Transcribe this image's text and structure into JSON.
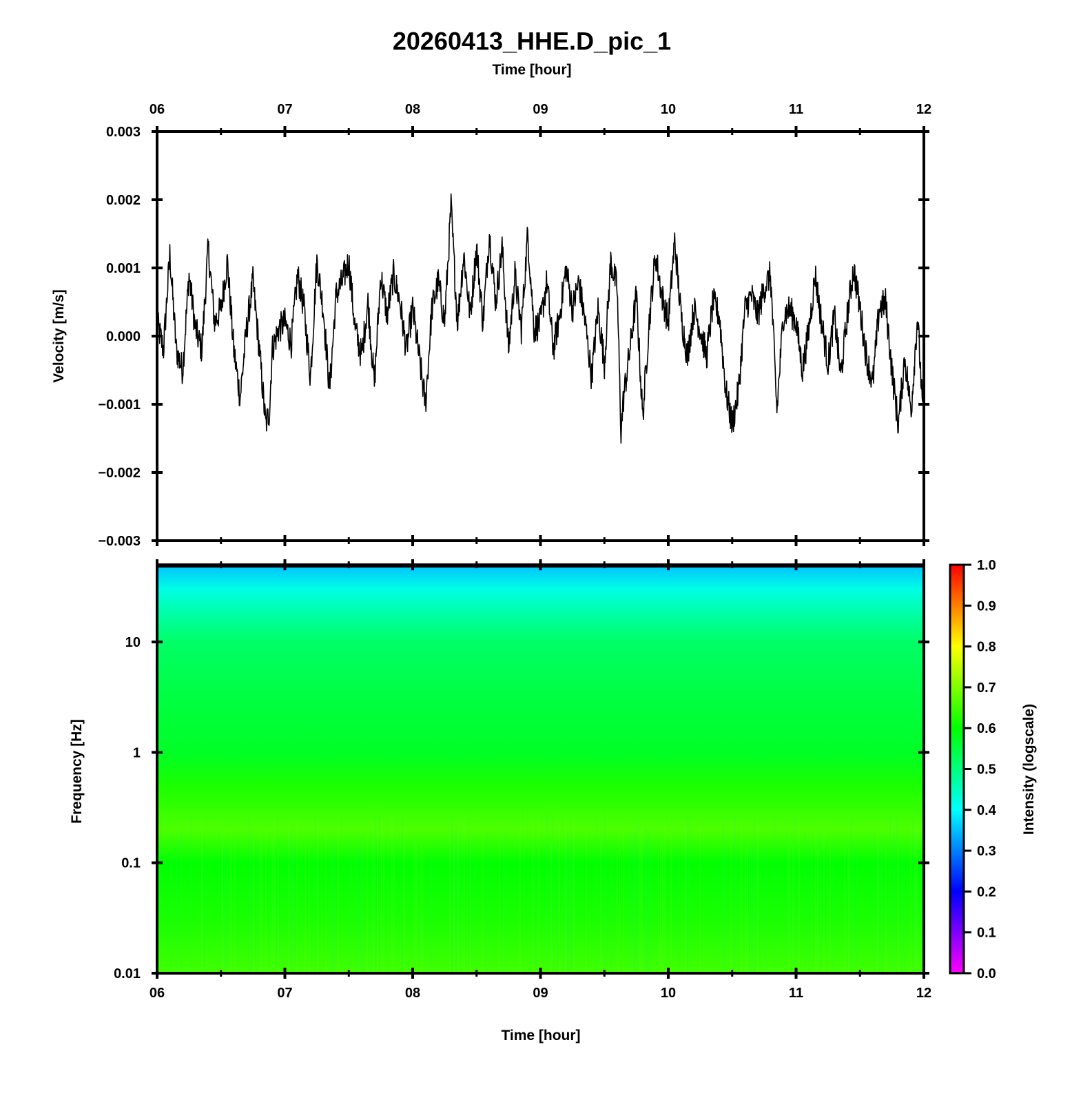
{
  "title": "20260413_HHE.D_pic_1",
  "chart_data": [
    {
      "type": "line",
      "name": "waveform",
      "xlabel_top": "Time [hour]",
      "ylabel": "Velocity [m/s]",
      "xlim": [
        6,
        12
      ],
      "ylim": [
        -0.003,
        0.003
      ],
      "x_ticks": [
        "06",
        "07",
        "08",
        "09",
        "10",
        "11",
        "12"
      ],
      "y_ticks": [
        "0.003",
        "0.002",
        "0.001",
        "0.000",
        "−0.001",
        "−0.002",
        "−0.003"
      ],
      "color": "#000000",
      "x": [
        6.0,
        6.05,
        6.1,
        6.15,
        6.2,
        6.25,
        6.3,
        6.35,
        6.4,
        6.45,
        6.5,
        6.55,
        6.6,
        6.65,
        6.7,
        6.75,
        6.8,
        6.85,
        6.88,
        6.9,
        6.95,
        7.0,
        7.05,
        7.1,
        7.15,
        7.2,
        7.25,
        7.3,
        7.35,
        7.4,
        7.45,
        7.5,
        7.55,
        7.6,
        7.65,
        7.7,
        7.75,
        7.8,
        7.85,
        7.9,
        7.95,
        8.0,
        8.05,
        8.1,
        8.15,
        8.2,
        8.25,
        8.3,
        8.35,
        8.4,
        8.45,
        8.5,
        8.55,
        8.6,
        8.65,
        8.7,
        8.75,
        8.8,
        8.85,
        8.9,
        8.95,
        9.0,
        9.05,
        9.1,
        9.15,
        9.2,
        9.25,
        9.3,
        9.35,
        9.4,
        9.45,
        9.5,
        9.55,
        9.6,
        9.63,
        9.65,
        9.7,
        9.75,
        9.8,
        9.85,
        9.9,
        9.95,
        10.0,
        10.05,
        10.1,
        10.15,
        10.2,
        10.25,
        10.3,
        10.35,
        10.4,
        10.45,
        10.5,
        10.55,
        10.6,
        10.65,
        10.7,
        10.75,
        10.8,
        10.85,
        10.9,
        10.95,
        11.0,
        11.05,
        11.1,
        11.15,
        11.2,
        11.25,
        11.3,
        11.35,
        11.4,
        11.45,
        11.5,
        11.55,
        11.6,
        11.65,
        11.7,
        11.75,
        11.8,
        11.85,
        11.9,
        11.95,
        12.0
      ],
      "y": [
        0.0002,
        -0.0002,
        0.0012,
        -0.0002,
        -0.0005,
        0.0009,
        0.0001,
        -0.0002,
        0.0013,
        0.0002,
        0.0004,
        0.0011,
        -0.0002,
        -0.0009,
        0.0001,
        0.0008,
        -0.0002,
        -0.0013,
        -0.0011,
        -0.0002,
        0.0001,
        0.0002,
        -0.0001,
        0.0009,
        0.0004,
        -0.0006,
        0.0011,
        0.0004,
        -0.0008,
        0.0006,
        0.0008,
        0.0011,
        0.0001,
        -0.0003,
        0.0005,
        -0.0007,
        0.0009,
        0.0003,
        0.0009,
        0.0005,
        -0.0002,
        0.0004,
        -0.0003,
        -0.001,
        0.0004,
        0.0008,
        0.0002,
        0.0019,
        0.0002,
        0.0012,
        0.0003,
        0.0013,
        0.0002,
        0.0015,
        0.0005,
        0.0013,
        -0.0002,
        0.0009,
        0.0001,
        0.0015,
        0.0001,
        0.0002,
        0.0008,
        -0.0002,
        0.0003,
        0.001,
        0.0004,
        0.0008,
        0.0002,
        -0.0006,
        0.0004,
        -0.0004,
        0.0011,
        0.0007,
        -0.0014,
        -0.0009,
        -0.0002,
        0.0006,
        -0.0012,
        0.0002,
        0.0012,
        0.0006,
        0.0002,
        0.0014,
        0.0003,
        -0.0003,
        0.0004,
        0.0001,
        -0.0003,
        0.0005,
        0.0003,
        -0.0008,
        -0.0013,
        -0.0008,
        0.0004,
        0.0006,
        0.0003,
        0.0007,
        0.0009,
        -0.0011,
        0.0003,
        0.0004,
        0.0002,
        -0.0005,
        0.0001,
        0.0009,
        0.0002,
        -0.0004,
        0.0003,
        -0.0006,
        0.0003,
        0.001,
        0.0004,
        -0.0003,
        -0.0007,
        0.0004,
        0.0005,
        -0.0005,
        -0.0013,
        -0.0003,
        -0.0011,
        0.0003,
        -0.0014
      ]
    },
    {
      "type": "heatmap",
      "name": "spectrogram",
      "xlabel": "Time [hour]",
      "ylabel": "Frequency [Hz]",
      "xlim": [
        6,
        12
      ],
      "ylim": [
        0.01,
        50
      ],
      "yscale": "log",
      "x_ticks": [
        "06",
        "07",
        "08",
        "09",
        "10",
        "11",
        "12"
      ],
      "y_ticks": [
        "10",
        "1",
        "0.1",
        "0.01"
      ],
      "colorbar": {
        "label": "Intensity (logscale)",
        "range": [
          0.0,
          1.0
        ],
        "ticks": [
          "1.0",
          "0.9",
          "0.8",
          "0.7",
          "0.6",
          "0.5",
          "0.4",
          "0.3",
          "0.2",
          "0.1",
          "0.0"
        ],
        "colormap": [
          "#ff00ff",
          "#0000ff",
          "#00ffff",
          "#00ff00",
          "#ffff00",
          "#ff0000"
        ]
      },
      "intensity_by_frequency": {
        "freq_hz": [
          50,
          30,
          20,
          10,
          3,
          1,
          0.5,
          0.2,
          0.1,
          0.03,
          0.01
        ],
        "intensity": [
          0.35,
          0.42,
          0.46,
          0.52,
          0.55,
          0.57,
          0.62,
          0.66,
          0.6,
          0.62,
          0.65
        ]
      }
    }
  ]
}
